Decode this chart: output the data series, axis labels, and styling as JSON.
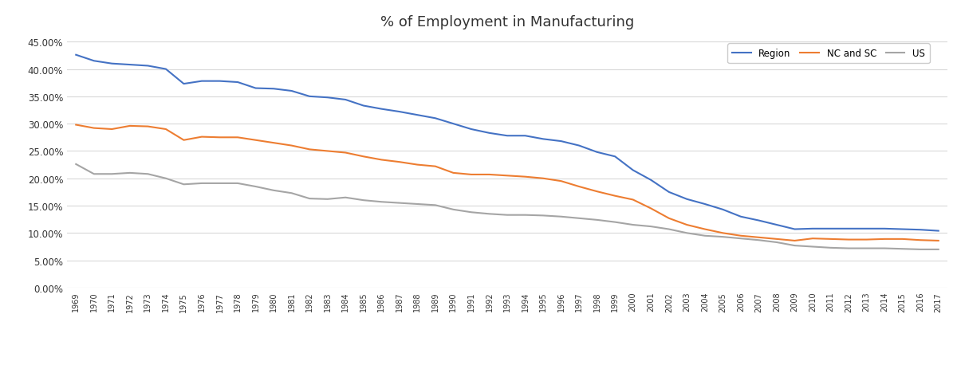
{
  "title": "% of Employment in Manufacturing",
  "years": [
    1969,
    1970,
    1971,
    1972,
    1973,
    1974,
    1975,
    1976,
    1977,
    1978,
    1979,
    1980,
    1981,
    1982,
    1983,
    1984,
    1985,
    1986,
    1987,
    1988,
    1989,
    1990,
    1991,
    1992,
    1993,
    1994,
    1995,
    1996,
    1997,
    1998,
    1999,
    2000,
    2001,
    2002,
    2003,
    2004,
    2005,
    2006,
    2007,
    2008,
    2009,
    2010,
    2011,
    2012,
    2013,
    2014,
    2015,
    2016,
    2017
  ],
  "region": [
    0.426,
    0.415,
    0.41,
    0.408,
    0.406,
    0.4,
    0.373,
    0.378,
    0.378,
    0.376,
    0.365,
    0.364,
    0.36,
    0.35,
    0.348,
    0.344,
    0.333,
    0.327,
    0.322,
    0.316,
    0.31,
    0.3,
    0.29,
    0.283,
    0.278,
    0.278,
    0.272,
    0.268,
    0.26,
    0.248,
    0.24,
    0.215,
    0.197,
    0.175,
    0.162,
    0.153,
    0.143,
    0.13,
    0.123,
    0.115,
    0.107,
    0.108,
    0.108,
    0.108,
    0.108,
    0.108,
    0.107,
    0.106,
    0.104
  ],
  "nc_sc": [
    0.298,
    0.292,
    0.29,
    0.296,
    0.295,
    0.29,
    0.27,
    0.276,
    0.275,
    0.275,
    0.27,
    0.265,
    0.26,
    0.253,
    0.25,
    0.247,
    0.24,
    0.234,
    0.23,
    0.225,
    0.222,
    0.21,
    0.207,
    0.207,
    0.205,
    0.203,
    0.2,
    0.195,
    0.185,
    0.176,
    0.168,
    0.161,
    0.145,
    0.127,
    0.115,
    0.107,
    0.1,
    0.095,
    0.092,
    0.089,
    0.086,
    0.09,
    0.089,
    0.088,
    0.088,
    0.089,
    0.089,
    0.087,
    0.086
  ],
  "us": [
    0.226,
    0.208,
    0.208,
    0.21,
    0.208,
    0.2,
    0.189,
    0.191,
    0.191,
    0.191,
    0.185,
    0.178,
    0.173,
    0.163,
    0.162,
    0.165,
    0.16,
    0.157,
    0.155,
    0.153,
    0.151,
    0.143,
    0.138,
    0.135,
    0.133,
    0.133,
    0.132,
    0.13,
    0.127,
    0.124,
    0.12,
    0.115,
    0.112,
    0.107,
    0.1,
    0.095,
    0.093,
    0.09,
    0.087,
    0.083,
    0.077,
    0.075,
    0.073,
    0.072,
    0.072,
    0.072,
    0.071,
    0.07,
    0.07
  ],
  "region_color": "#4472C4",
  "nc_sc_color": "#ED7D31",
  "us_color": "#A5A5A5",
  "region_label": "Region",
  "nc_sc_label": "NC and SC",
  "us_label": "US",
  "ylim": [
    0.0,
    0.46
  ],
  "yticks": [
    0.0,
    0.05,
    0.1,
    0.15,
    0.2,
    0.25,
    0.3,
    0.35,
    0.4,
    0.45
  ],
  "background_color": "#FFFFFF",
  "grid_color": "#D9D9D9",
  "line_width": 1.5,
  "title_fontsize": 13
}
